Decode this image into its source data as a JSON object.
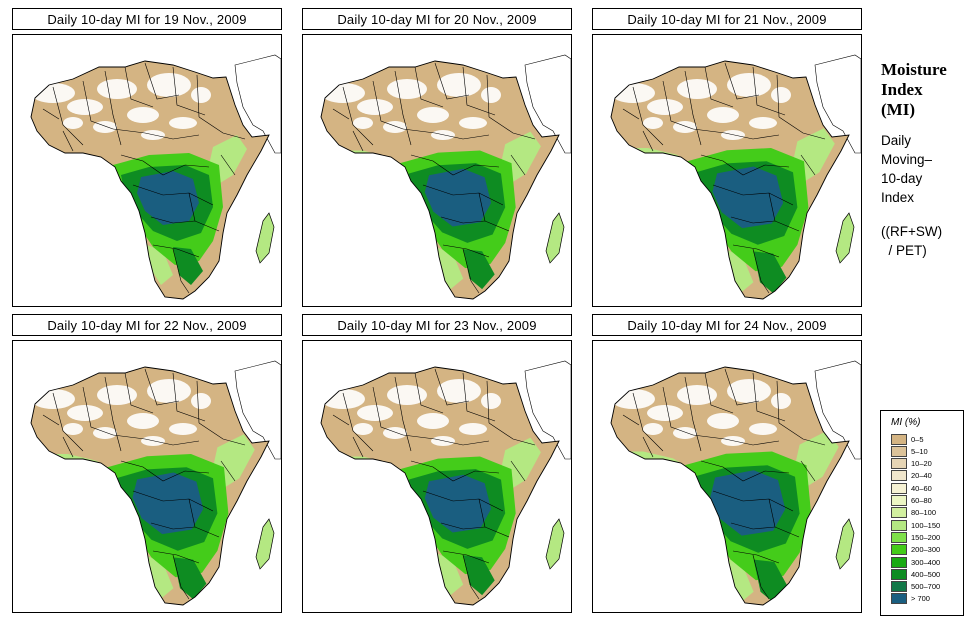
{
  "panels": [
    {
      "title": "Daily 10-day MI for  19 Nov., 2009",
      "wet_level": 0
    },
    {
      "title": "Daily 10-day MI for  20 Nov., 2009",
      "wet_level": 1
    },
    {
      "title": "Daily 10-day MI for  21 Nov., 2009",
      "wet_level": 2
    },
    {
      "title": "Daily 10-day MI for  22 Nov., 2009",
      "wet_level": 2
    },
    {
      "title": "Daily 10-day MI for  23 Nov., 2009",
      "wet_level": 1
    },
    {
      "title": "Daily 10-day MI for  24 Nov., 2009",
      "wet_level": 3
    }
  ],
  "side": {
    "title_lines": [
      "Moisture",
      "Index",
      "(MI)"
    ],
    "description_lines": [
      "Daily",
      "Moving–",
      "10-day",
      "Index"
    ],
    "formula_lines": [
      "((RF+SW)",
      "  / PET)"
    ]
  },
  "legend": {
    "title": "MI (%)",
    "entries": [
      {
        "label": "0–5",
        "color": "#d4b483"
      },
      {
        "label": "5–10",
        "color": "#dcc39a"
      },
      {
        "label": "10–20",
        "color": "#e6d5b5"
      },
      {
        "label": "20–40",
        "color": "#f0e6cc"
      },
      {
        "label": "40–60",
        "color": "#f6f2d4"
      },
      {
        "label": "60–80",
        "color": "#ecf6c4"
      },
      {
        "label": "80–100",
        "color": "#d2f0a0"
      },
      {
        "label": "100–150",
        "color": "#b4e882"
      },
      {
        "label": "150–200",
        "color": "#7ee04a"
      },
      {
        "label": "200–300",
        "color": "#44cc1a"
      },
      {
        "label": "300–400",
        "color": "#1aaa14"
      },
      {
        "label": "400–500",
        "color": "#0e8c22"
      },
      {
        "label": "500–700",
        "color": "#127848"
      },
      {
        "label": "> 700",
        "color": "#1a5e80"
      }
    ]
  },
  "colors": {
    "dry": "#d4b483",
    "desert_white": "#ffffff",
    "light_green": "#b4e882",
    "green": "#44cc1a",
    "dark_green": "#0e8c22",
    "wettest": "#1a5e80",
    "border": "#000000"
  }
}
